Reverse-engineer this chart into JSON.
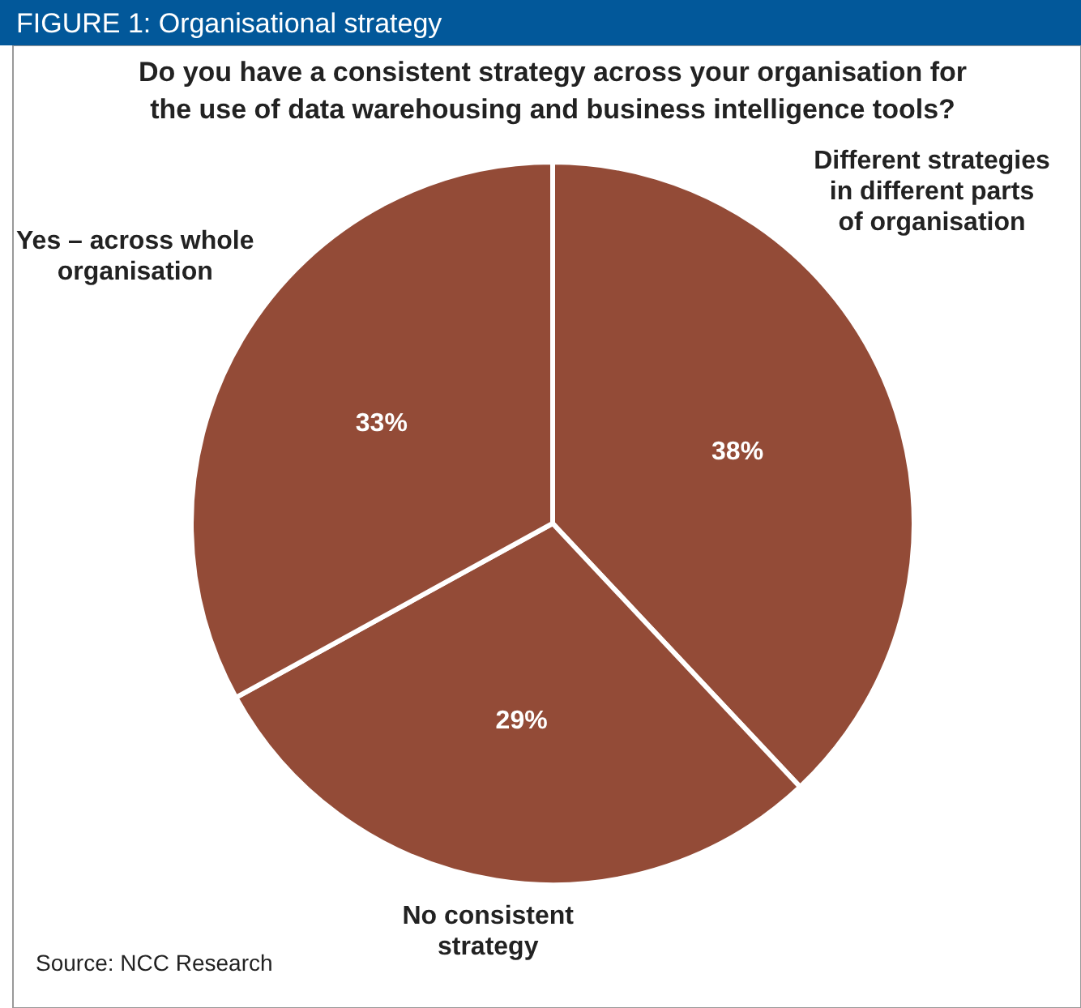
{
  "chart_data": {
    "type": "pie",
    "title": "FIGURE 1: Organisational strategy",
    "subtitle": "Do you have a consistent strategy across your organisation for the use of data warehousing and business intelligence tools?",
    "categories": [
      "Different strategies in different parts of organisation",
      "No consistent strategy",
      "Yes – across whole organisation"
    ],
    "values": [
      38,
      29,
      33
    ],
    "colors": [
      "#934b37",
      "#934b37",
      "#934b37"
    ],
    "value_labels": [
      "38%",
      "29%",
      "33%"
    ],
    "annotations": [
      "Source: NCC Research"
    ]
  }
}
